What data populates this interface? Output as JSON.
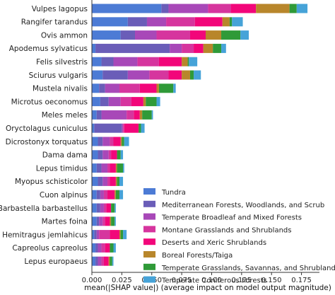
{
  "chart_data": {
    "type": "bar",
    "orientation": "horizontal",
    "stacked": true,
    "title": "",
    "xlabel": "mean(|SHAP value|) (average impact on model output magnitude)",
    "ylabel": "",
    "xlim": [
      0,
      0.19
    ],
    "x_ticks": [
      "0.000",
      "0.025",
      "0.050",
      "0.075",
      "0.100",
      "0.125",
      "0.150",
      "0.175"
    ],
    "x_tick_values": [
      0,
      0.025,
      0.05,
      0.075,
      0.1,
      0.125,
      0.15,
      0.175
    ],
    "grid": false,
    "legend_position": "lower-right",
    "categories": [
      "Vulpes lagopus",
      "Rangifer tarandus",
      "Ovis ammon",
      "Apodemus sylvaticus",
      "Felis silvestris",
      "Sciurus vulgaris",
      "Mustela nivalis",
      "Microtus oeconomus",
      "Meles meles",
      "Oryctolagus cuniculus",
      "Dicrostonyx torquatus",
      "Dama dama",
      "Lepus timidus",
      "Myopus schisticolor",
      "Cuon alpinus",
      "Barbastella barbastellus",
      "Martes foina",
      "Hemitragus jemlahicus",
      "Capreolus capreolus",
      "Lepus europaeus"
    ],
    "series": [
      {
        "name": "Tundra",
        "color": "#4C7BD5",
        "values": [
          0.058,
          0.03,
          0.024,
          0.003,
          0.008,
          0.009,
          0.006,
          0.007,
          0.004,
          0.002,
          0.005,
          0.005,
          0.004,
          0.005,
          0.004,
          0.004,
          0.004,
          0.002,
          0.003,
          0.003
        ]
      },
      {
        "name": "Mediterranean Forests, Woodlands, and Scrub",
        "color": "#6A5DB8",
        "values": [
          0.006,
          0.016,
          0.012,
          0.062,
          0.01,
          0.021,
          0.005,
          0.007,
          0.004,
          0.023,
          0.004,
          0.004,
          0.004,
          0.004,
          0.003,
          0.003,
          0.002,
          0.002,
          0.002,
          0.002
        ]
      },
      {
        "name": "Temperate Broadleaf and Mixed Forests",
        "color": "#A848B8",
        "values": [
          0.033,
          0.016,
          0.018,
          0.01,
          0.02,
          0.018,
          0.012,
          0.01,
          0.021,
          0.001,
          0.006,
          0.005,
          0.005,
          0.004,
          0.003,
          0.003,
          0.003,
          0.002,
          0.003,
          0.003
        ]
      },
      {
        "name": "Montane Grasslands and Shrublands",
        "color": "#D6359E",
        "values": [
          0.019,
          0.024,
          0.028,
          0.01,
          0.018,
          0.016,
          0.017,
          0.009,
          0.006,
          0.001,
          0.003,
          0.002,
          0.002,
          0.002,
          0.003,
          0.002,
          0.002,
          0.009,
          0.003,
          0.002
        ]
      },
      {
        "name": "Deserts and Xeric Shrublands",
        "color": "#F2067A",
        "values": [
          0.021,
          0.023,
          0.013,
          0.008,
          0.019,
          0.011,
          0.014,
          0.01,
          0.005,
          0.012,
          0.006,
          0.005,
          0.005,
          0.005,
          0.006,
          0.004,
          0.004,
          0.008,
          0.004,
          0.004
        ]
      },
      {
        "name": "Boreal Forests/Taiga",
        "color": "#B8862B",
        "values": [
          0.028,
          0.006,
          0.013,
          0.008,
          0.005,
          0.007,
          0.002,
          0.002,
          0.002,
          0.0,
          0.001,
          0.0,
          0.001,
          0.001,
          0.001,
          0.0,
          0.001,
          0.001,
          0.0,
          0.001
        ]
      },
      {
        "name": "Temperate Grasslands, Savannas, and Shrublands",
        "color": "#2F9A38",
        "values": [
          0.006,
          0.002,
          0.016,
          0.007,
          0.001,
          0.003,
          0.012,
          0.009,
          0.008,
          0.002,
          0.002,
          0.003,
          0.005,
          0.002,
          0.003,
          0.003,
          0.003,
          0.002,
          0.003,
          0.002
        ]
      },
      {
        "name": "Temperate Coniferous Forests",
        "color": "#46A3D8",
        "values": [
          0.009,
          0.009,
          0.007,
          0.004,
          0.007,
          0.006,
          0.002,
          0.003,
          0.001,
          0.003,
          0.004,
          0.002,
          0.001,
          0.003,
          0.003,
          0.001,
          0.001,
          0.003,
          0.002,
          0.001
        ]
      }
    ]
  }
}
